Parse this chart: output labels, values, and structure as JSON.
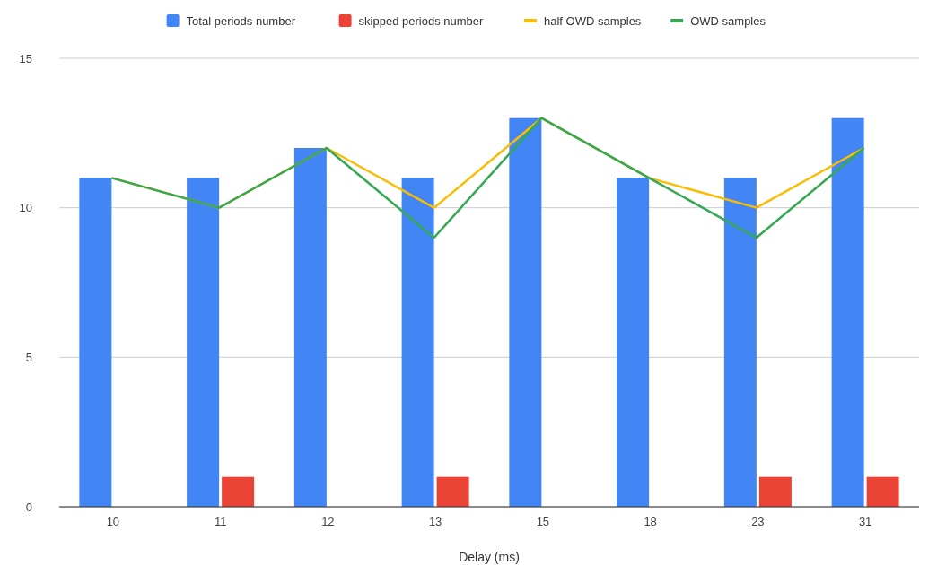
{
  "chart_data": {
    "type": "bar",
    "xlabel": "Delay (ms)",
    "categories": [
      "10",
      "11",
      "12",
      "13",
      "15",
      "18",
      "23",
      "31"
    ],
    "series": [
      {
        "name": "Total periods number",
        "color": "#4285f4",
        "values": [
          11,
          11,
          12,
          11,
          13,
          11,
          11,
          13
        ]
      },
      {
        "name": "skipped periods number",
        "color": "#ea4335",
        "values": [
          0,
          1,
          0,
          1,
          0,
          0,
          1,
          1
        ]
      },
      {
        "name": "half OWD samples",
        "type": "line",
        "color": "#fbbc04",
        "values": [
          11,
          10,
          12,
          10,
          13,
          11,
          10,
          12
        ]
      },
      {
        "name": "OWD samples",
        "type": "line",
        "color": "#34a853",
        "values": [
          11,
          10,
          12,
          9,
          13,
          11,
          9,
          12
        ]
      }
    ],
    "ylim": [
      0,
      15
    ],
    "yticks": [
      0,
      5,
      10,
      15
    ],
    "grid": "y",
    "legend": "top",
    "marker": "none",
    "line_style": "solid"
  }
}
